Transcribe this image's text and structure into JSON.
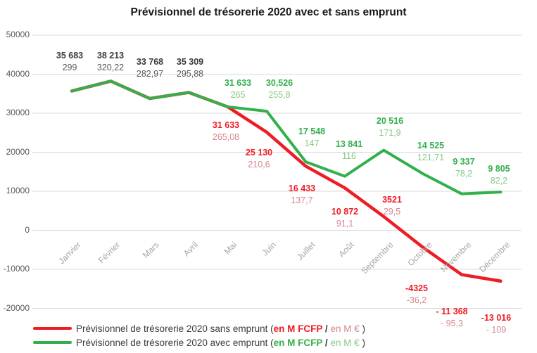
{
  "colors": {
    "red": "#EE1C25",
    "red_light": "#D5868C",
    "green": "#33B04C",
    "green_light": "#86CA85",
    "ink": "#3B3B3B",
    "gray": "#595959",
    "gridline": "#D9D9D9",
    "x_axis_text": "#A6A6A6"
  },
  "chart_data": {
    "type": "line",
    "title": "Prévisionnel de trésorerie 2020 avec et sans emprunt",
    "categories": [
      "Janvier",
      "Février",
      "Mars",
      "Avril",
      "Mai",
      "Juin",
      "Juillet",
      "Août",
      "Septembre",
      "Octobre",
      "Novembre",
      "Décembre"
    ],
    "ylim": [
      -20000,
      50000
    ],
    "y_ticks": [
      50000,
      40000,
      30000,
      20000,
      10000,
      0,
      -10000,
      -20000
    ],
    "grid": "horizontal",
    "legend_position": "bottom-left",
    "series": [
      {
        "name": "Prévisionnel de trésorerie 2020 sans emprunt",
        "color_key": "red",
        "values": [
          35683,
          38213,
          33768,
          35309,
          31633,
          25130,
          16433,
          10872,
          3521,
          -4325,
          -11368,
          -13016
        ],
        "values_eur": [
          299,
          320.22,
          282.97,
          295.88,
          265.08,
          210.6,
          137.7,
          91.1,
          29.5,
          -36.2,
          -95.3,
          -109
        ]
      },
      {
        "name": "Prévisionnel de trésorerie 2020 avec emprunt",
        "color_key": "green",
        "values": [
          35683,
          38213,
          33768,
          35309,
          31633,
          30526,
          17548,
          13841,
          20516,
          14525,
          9337,
          9805
        ],
        "values_eur": [
          299,
          320.22,
          282.97,
          295.88,
          265,
          255.8,
          147,
          116,
          171.9,
          121.71,
          78.2,
          82.2
        ]
      }
    ],
    "point_labels": {
      "shared": [
        {
          "fcfp": "35 683",
          "eur": "299"
        },
        {
          "fcfp": "38 213",
          "eur": "320,22"
        },
        {
          "fcfp": "33 768",
          "eur": "282,97"
        },
        {
          "fcfp": "35 309",
          "eur": "295,88"
        }
      ],
      "green": [
        {
          "fcfp": "31 633",
          "eur": "265"
        },
        {
          "fcfp": "30,526",
          "eur": "255,8"
        },
        {
          "fcfp": "17 548",
          "eur": "147"
        },
        {
          "fcfp": "13 841",
          "eur": "116"
        },
        {
          "fcfp": "20 516",
          "eur": "171,9"
        },
        {
          "fcfp": "14 525",
          "eur": "121,71"
        },
        {
          "fcfp": "9 337",
          "eur": "78,2"
        },
        {
          "fcfp": "9 805",
          "eur": "82,2"
        }
      ],
      "red": [
        {
          "fcfp": "31 633",
          "eur": "265,08"
        },
        {
          "fcfp": "25 130",
          "eur": "210,6"
        },
        {
          "fcfp": "16 433",
          "eur": "137,7"
        },
        {
          "fcfp": "10 872",
          "eur": "91,1"
        },
        {
          "fcfp": "3521",
          "eur": "29,5"
        },
        {
          "fcfp": "-4325",
          "eur": "-36,2"
        },
        {
          "fcfp": "- 11 368",
          "eur": "- 95,3"
        },
        {
          "fcfp": "-13 016",
          "eur": "- 109"
        }
      ]
    }
  },
  "legend": {
    "items": [
      {
        "prefix": "Prévisionnel de trésorerie 2020 sans emprunt (",
        "fcfp": "en M FCFP",
        "slash": " / ",
        "eur": "en M €",
        "suffix": " )"
      },
      {
        "prefix": "Prévisionnel de trésorerie 2020 avec emprunt (",
        "fcfp": "en M FCFP",
        "slash": " / ",
        "eur": "en M €",
        "suffix": " )"
      }
    ]
  }
}
